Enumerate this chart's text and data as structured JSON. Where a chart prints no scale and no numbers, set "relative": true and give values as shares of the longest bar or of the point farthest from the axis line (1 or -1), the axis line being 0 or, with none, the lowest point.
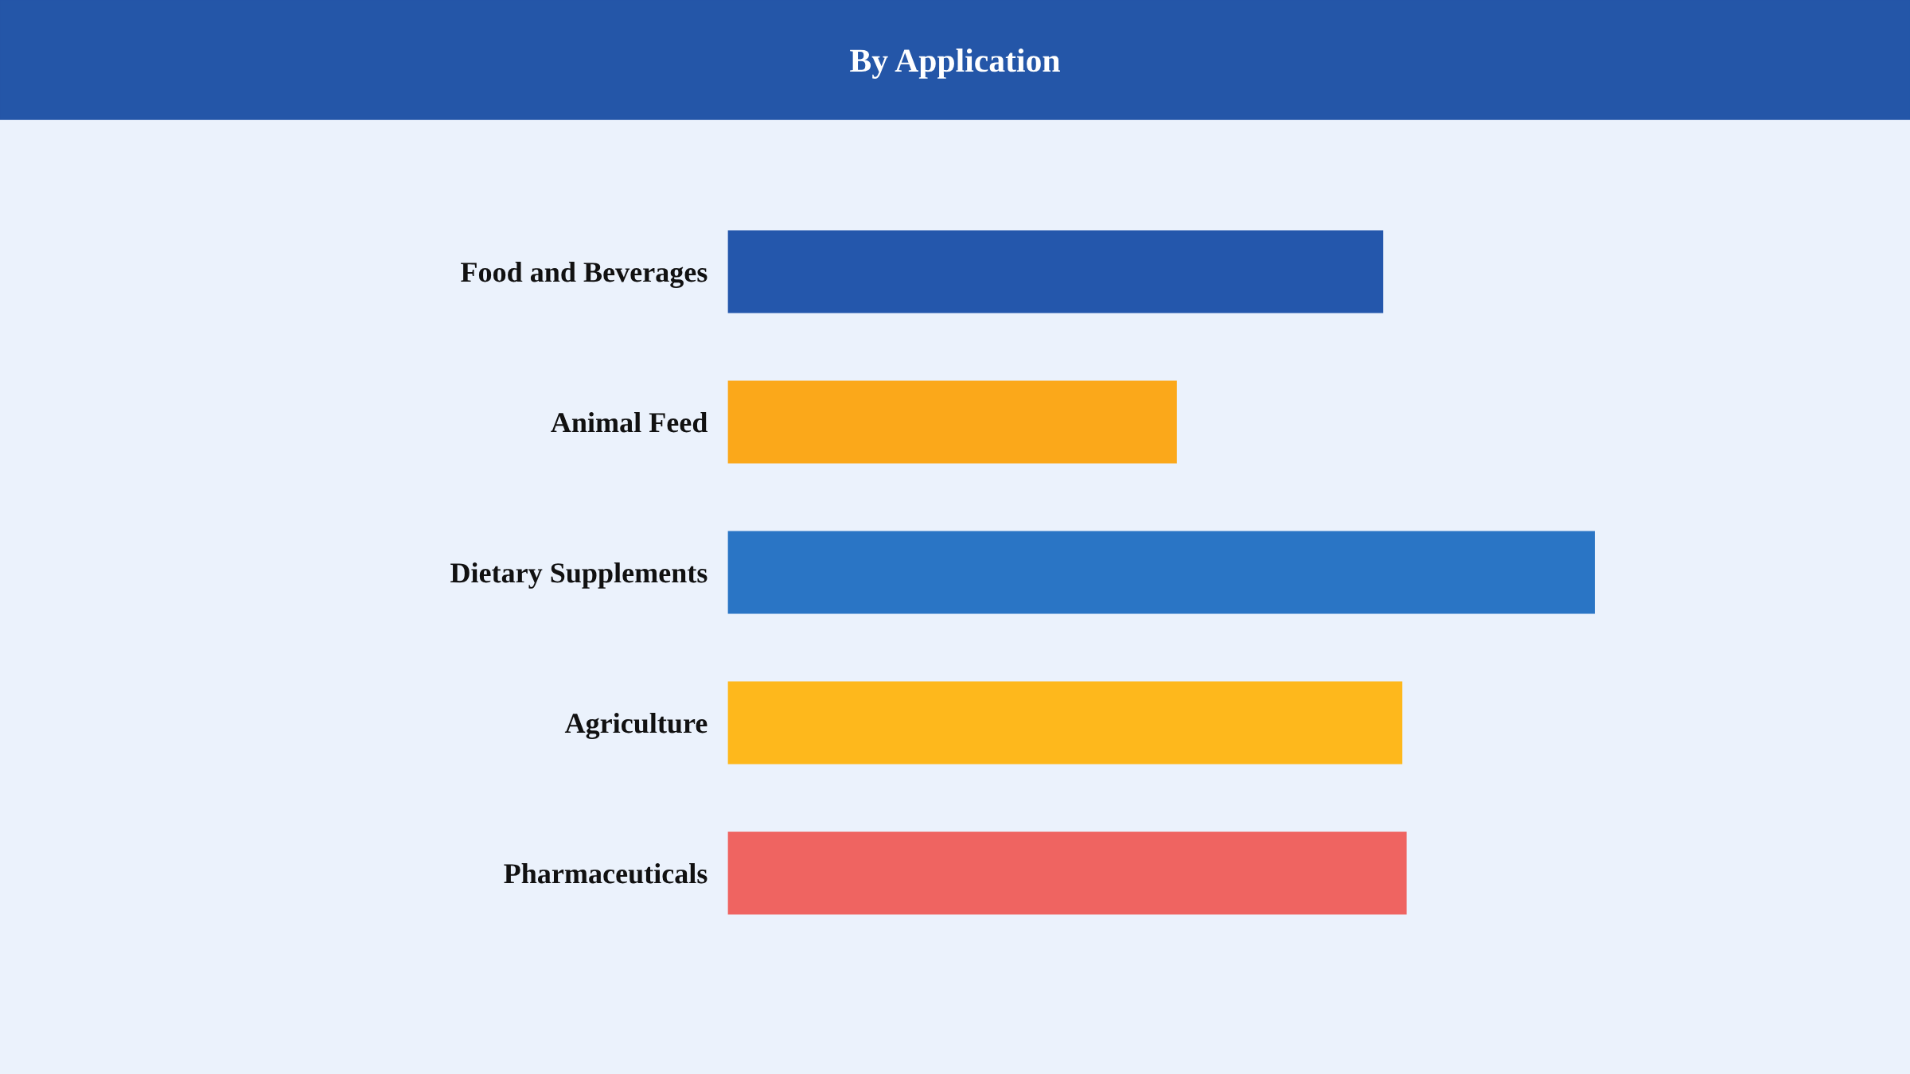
{
  "chart_data": {
    "type": "bar",
    "orientation": "horizontal",
    "relative": true,
    "title": "By Application",
    "categories": [
      "Food and Beverages",
      "Animal Feed",
      "Dietary Supplements",
      "Agriculture",
      "Pharmaceuticals"
    ],
    "values": [
      0.756,
      0.518,
      1,
      0.778,
      0.783
    ],
    "colors": [
      "#2457ac",
      "#fba81a",
      "#2a75c5",
      "#feb81c",
      "#ef6461"
    ],
    "grid": false,
    "legend": false
  }
}
